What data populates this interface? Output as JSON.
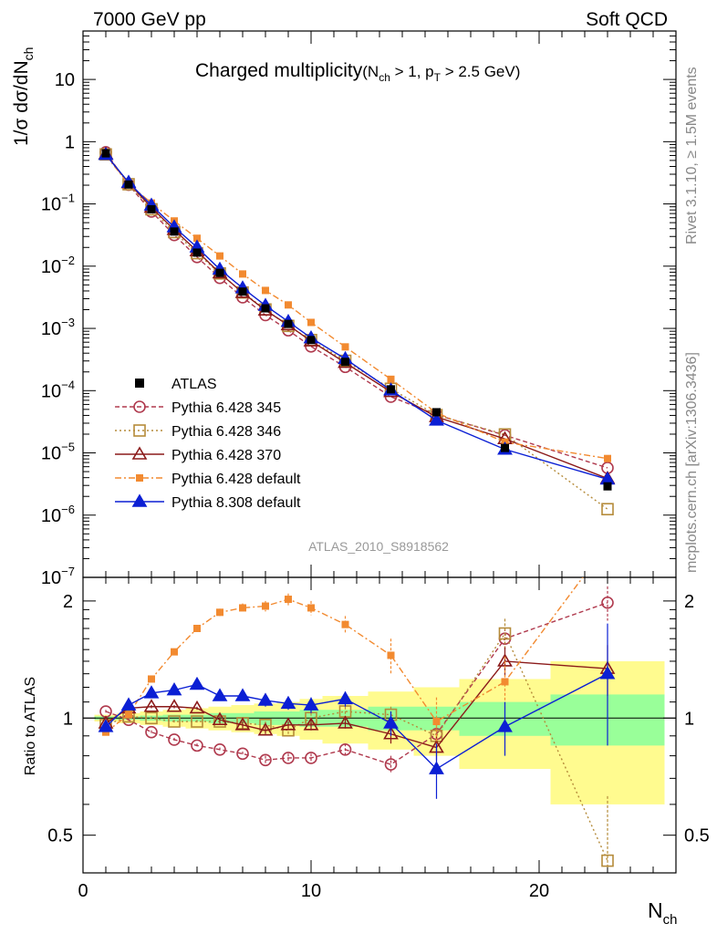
{
  "header": {
    "left": "7000 GeV pp",
    "right": "Soft QCD"
  },
  "side_labels": {
    "rivet": "Rivet 3.1.10, ≥ 1.5M events",
    "mcplots": "mcplots.cern.ch [arXiv:1306.3436]"
  },
  "chart_data": {
    "type": "scatter",
    "title": "Charged multiplicity",
    "title_suffix": "(N_ch > 1, p_T > 2.5 GeV)",
    "analysis_id": "ATLAS_2010_S8918562",
    "xlabel": "N_ch",
    "ylabel_main": "1/σ dσ/dN_ch",
    "ylabel_ratio": "Ratio to ATLAS",
    "xlim": [
      0,
      26
    ],
    "ylim_main": [
      1e-07,
      60
    ],
    "ylim_ratio": [
      0.4,
      2.3
    ],
    "yscale_main": "log",
    "yscale_ratio": "log",
    "x_ticks": [
      0,
      10,
      20
    ],
    "y_ticks_main": [
      {
        "v": 1e-07,
        "m": "10",
        "e": "−7"
      },
      {
        "v": 1e-06,
        "m": "10",
        "e": "−6"
      },
      {
        "v": 1e-05,
        "m": "10",
        "e": "−5"
      },
      {
        "v": 0.0001,
        "m": "10",
        "e": "−4"
      },
      {
        "v": 0.001,
        "m": "10",
        "e": "−3"
      },
      {
        "v": 0.01,
        "m": "10",
        "e": "−2"
      },
      {
        "v": 0.1,
        "m": "10",
        "e": "−1"
      },
      {
        "v": 1,
        "m": "1",
        "e": ""
      },
      {
        "v": 10,
        "m": "10",
        "e": ""
      }
    ],
    "y_ticks_ratio": [
      {
        "v": 0.5,
        "t": "0.5"
      },
      {
        "v": 1,
        "t": "1"
      },
      {
        "v": 2,
        "t": "2"
      }
    ],
    "legend_position": "lower-left",
    "x": [
      1,
      2,
      3,
      4,
      5,
      6,
      7,
      8,
      9,
      10,
      11.5,
      13.5,
      15.5,
      18.5,
      23
    ],
    "x_bins": [
      [
        0.5,
        1.5
      ],
      [
        1.5,
        2.5
      ],
      [
        2.5,
        3.5
      ],
      [
        3.5,
        4.5
      ],
      [
        4.5,
        5.5
      ],
      [
        5.5,
        6.5
      ],
      [
        6.5,
        7.5
      ],
      [
        7.5,
        8.5
      ],
      [
        8.5,
        9.5
      ],
      [
        9.5,
        10.5
      ],
      [
        10.5,
        12.5
      ],
      [
        12.5,
        14.5
      ],
      [
        14.5,
        16.5
      ],
      [
        16.5,
        20.5
      ],
      [
        20.5,
        25.5
      ]
    ],
    "data": {
      "name": "ATLAS",
      "values": [
        0.65,
        0.205,
        0.082,
        0.036,
        0.0165,
        0.0078,
        0.0039,
        0.0021,
        0.00118,
        0.00065,
        0.00029,
        0.000105,
        4.5e-05,
        1.2e-05,
        2.9e-06
      ],
      "band_stat": [
        0.01,
        0.01,
        0.015,
        0.02,
        0.02,
        0.03,
        0.03,
        0.04,
        0.04,
        0.05,
        0.05,
        0.07,
        0.07,
        0.1,
        0.15
      ],
      "band_total": [
        0.02,
        0.03,
        0.04,
        0.05,
        0.06,
        0.07,
        0.08,
        0.09,
        0.1,
        0.12,
        0.14,
        0.17,
        0.2,
        0.26,
        0.4
      ]
    },
    "series": [
      {
        "name": "Pythia 6.428 345",
        "color": "#b03a4e",
        "marker": "circle-open",
        "dash": "5,3",
        "ratio": [
          1.04,
          0.99,
          0.92,
          0.88,
          0.85,
          0.83,
          0.81,
          0.78,
          0.79,
          0.79,
          0.83,
          0.76,
          0.91,
          1.6,
          1.98
        ],
        "ratio_err": [
          0.01,
          0.01,
          0.01,
          0.01,
          0.01,
          0.01,
          0.01,
          0.02,
          0.02,
          0.02,
          0.03,
          0.04,
          0.06,
          0.1,
          0.2
        ]
      },
      {
        "name": "Pythia 6.428 346",
        "color": "#b58b3a",
        "marker": "square-open",
        "dash": "2,3",
        "ratio": [
          0.96,
          1.01,
          1.0,
          0.98,
          0.98,
          0.98,
          0.97,
          0.96,
          0.93,
          1.0,
          1.04,
          1.02,
          0.9,
          1.65,
          0.43
        ],
        "ratio_err": [
          0.01,
          0.01,
          0.01,
          0.01,
          0.01,
          0.02,
          0.02,
          0.02,
          0.02,
          0.03,
          0.03,
          0.05,
          0.08,
          0.15,
          0.2
        ]
      },
      {
        "name": "Pythia 6.428 370",
        "color": "#8b1a1a",
        "marker": "triangle-open",
        "dash": "",
        "ratio": [
          0.97,
          1.06,
          1.07,
          1.07,
          1.06,
          0.99,
          0.96,
          0.93,
          0.96,
          0.96,
          0.97,
          0.91,
          0.84,
          1.4,
          1.34
        ],
        "ratio_err": [
          0.01,
          0.01,
          0.01,
          0.01,
          0.01,
          0.02,
          0.02,
          0.02,
          0.02,
          0.03,
          0.03,
          0.05,
          0.06,
          0.12,
          0.2
        ]
      },
      {
        "name": "Pythia 6.428 default",
        "color": "#f28a30",
        "marker": "square-filled",
        "dash": "7,3,2,3",
        "ratio": [
          0.92,
          1.02,
          1.26,
          1.48,
          1.7,
          1.87,
          1.92,
          1.94,
          2.02,
          1.92,
          1.74,
          1.45,
          0.98,
          1.24,
          2.8
        ],
        "ratio_err": [
          0.01,
          0.02,
          0.02,
          0.02,
          0.03,
          0.04,
          0.05,
          0.06,
          0.07,
          0.08,
          0.09,
          0.15,
          0.15,
          0.2,
          0.5
        ]
      },
      {
        "name": "Pythia 8.308 default",
        "color": "#0b1fd4",
        "marker": "triangle-filled",
        "dash": "",
        "ratio": [
          0.95,
          1.08,
          1.16,
          1.18,
          1.22,
          1.14,
          1.14,
          1.11,
          1.09,
          1.08,
          1.12,
          0.97,
          0.74,
          0.95,
          1.3
        ],
        "ratio_err": [
          0.01,
          0.01,
          0.02,
          0.02,
          0.02,
          0.02,
          0.03,
          0.04,
          0.04,
          0.05,
          0.05,
          0.07,
          0.12,
          0.15,
          0.45
        ]
      }
    ]
  }
}
